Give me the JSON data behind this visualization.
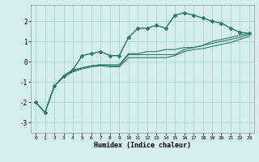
{
  "background_color": "#d4eeee",
  "grid_color": "#add4d4",
  "line_color": "#2a7a6a",
  "xlabel": "Humidex (Indice chaleur)",
  "xlim": [
    -0.5,
    23.5
  ],
  "ylim": [
    -3.5,
    2.8
  ],
  "yticks": [
    -3,
    -2,
    -1,
    0,
    1,
    2
  ],
  "xticks": [
    0,
    1,
    2,
    3,
    4,
    5,
    6,
    7,
    8,
    9,
    10,
    11,
    12,
    13,
    14,
    15,
    16,
    17,
    18,
    19,
    20,
    21,
    22,
    23
  ],
  "series": [
    {
      "x": [
        0,
        1,
        2,
        3,
        4,
        5,
        6,
        7,
        8,
        9,
        10,
        11,
        12,
        13,
        14,
        15,
        16,
        17,
        18,
        19,
        20,
        21,
        22,
        23
      ],
      "y": [
        -2.0,
        -2.5,
        -1.2,
        -0.7,
        -0.4,
        0.3,
        0.4,
        0.5,
        0.3,
        0.3,
        1.2,
        1.65,
        1.65,
        1.8,
        1.65,
        2.3,
        2.4,
        2.3,
        2.15,
        2.0,
        1.9,
        1.65,
        1.45,
        1.4
      ],
      "marker": true,
      "linewidth": 1.0
    },
    {
      "x": [
        0,
        1,
        2,
        3,
        4,
        5,
        6,
        7,
        8,
        9,
        10,
        11,
        12,
        13,
        14,
        15,
        16,
        17,
        18,
        19,
        20,
        21,
        22,
        23
      ],
      "y": [
        -2.0,
        -2.5,
        -1.2,
        -0.75,
        -0.45,
        -0.3,
        -0.2,
        -0.15,
        -0.2,
        -0.2,
        0.35,
        0.35,
        0.35,
        0.35,
        0.35,
        0.35,
        0.6,
        0.7,
        0.8,
        0.9,
        1.0,
        1.1,
        1.2,
        1.35
      ],
      "marker": false,
      "linewidth": 0.8
    },
    {
      "x": [
        0,
        1,
        2,
        3,
        4,
        5,
        6,
        7,
        8,
        9,
        10,
        11,
        12,
        13,
        14,
        15,
        16,
        17,
        18,
        19,
        20,
        21,
        22,
        23
      ],
      "y": [
        -2.0,
        -2.5,
        -1.2,
        -0.75,
        -0.5,
        -0.35,
        -0.25,
        -0.2,
        -0.25,
        -0.25,
        0.2,
        0.2,
        0.2,
        0.2,
        0.2,
        0.3,
        0.5,
        0.6,
        0.65,
        0.75,
        0.85,
        0.95,
        1.1,
        1.25
      ],
      "marker": false,
      "linewidth": 0.8
    },
    {
      "x": [
        3,
        4,
        5,
        6,
        7,
        8,
        9,
        10,
        11,
        12,
        13,
        14,
        15,
        16,
        17,
        18,
        19,
        20,
        21,
        22,
        23
      ],
      "y": [
        -0.7,
        -0.4,
        -0.3,
        -0.2,
        -0.15,
        -0.15,
        -0.15,
        0.4,
        0.4,
        0.5,
        0.5,
        0.6,
        0.6,
        0.7,
        0.7,
        0.8,
        1.0,
        1.1,
        1.2,
        1.3,
        1.4
      ],
      "marker": false,
      "linewidth": 0.8
    }
  ]
}
